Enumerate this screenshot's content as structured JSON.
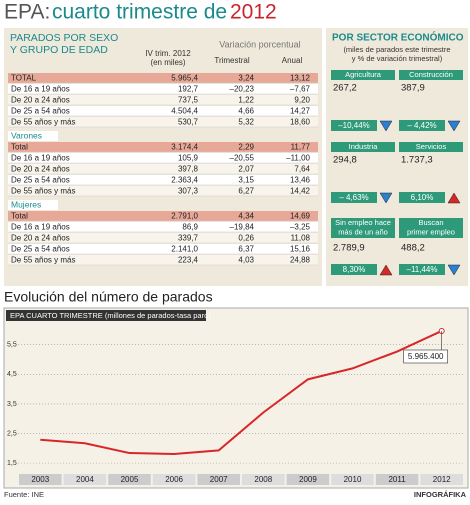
{
  "header": {
    "title_a": "EPA:",
    "title_b": "cuarto trimestre de",
    "title_c": "2012"
  },
  "table": {
    "title_1": "PARADOS POR SEXO",
    "title_2": "Y GRUPO DE EDAD",
    "col_value_1": "IV trim. 2012",
    "col_value_2": "(en miles)",
    "col_var": "Variación porcentual",
    "col_trim": "Trimestral",
    "col_anual": "Anual",
    "groups": [
      {
        "rows": [
          [
            "TOTAL",
            "5.965,4",
            "3,24",
            "13,12"
          ],
          [
            "De 16 a 19 años",
            "192,7",
            "–20,23",
            "–7,67"
          ],
          [
            "De 20 a 24 años",
            "737,5",
            "1,22",
            "9,20"
          ],
          [
            "De 25 a 54 años",
            "4.504,4",
            "4,66",
            "14,27"
          ],
          [
            "De 55 años y más",
            "530,7",
            "5,32",
            "18,60"
          ]
        ]
      },
      {
        "label": "Varones",
        "rows": [
          [
            "Total",
            "3.174,4",
            "2,29",
            "11,77"
          ],
          [
            "De 16 a 19 años",
            "105,9",
            "–20,55",
            "–11,00"
          ],
          [
            "De 20 a 24 años",
            "397,8",
            "2,07",
            "7,64"
          ],
          [
            "De 25 a 54 años",
            "2.363,4",
            "3,15",
            "13,46"
          ],
          [
            "De 55 años y más",
            "307,3",
            "6,27",
            "14,42"
          ]
        ]
      },
      {
        "label": "Mujeres",
        "rows": [
          [
            "Total",
            "2.791,0",
            "4,34",
            "14,69"
          ],
          [
            "De 16 a 19 años",
            "86,9",
            "–19,84",
            "–3,25"
          ],
          [
            "De 20 a 24 años",
            "339,7",
            "0,26",
            "11,08"
          ],
          [
            "De 25 a 54 años",
            "2.141,0",
            "6,37",
            "15,16"
          ],
          [
            "De 55 años y más",
            "223,4",
            "4,03",
            "24,88"
          ]
        ]
      }
    ]
  },
  "sectors": {
    "title": "POR SECTOR ECONÓMICO",
    "subtitle_1": "(miles de parados este trimestre",
    "subtitle_2": "y % de variación trimestral)",
    "items": [
      {
        "label": [
          "Agricultura"
        ],
        "value": "267,2",
        "change": "–10,44%"
      },
      {
        "label": [
          "Construcción"
        ],
        "value": "387,9",
        "change": "– 4,42%"
      },
      {
        "label": [
          "Industria"
        ],
        "value": "294,8",
        "change": "– 4,63%"
      },
      {
        "label": [
          "Servicios"
        ],
        "value": "1.737,3",
        "change": "6,10%"
      },
      {
        "label": [
          "Sin empleo hace",
          "más de un año"
        ],
        "value": "2.789,9",
        "change": "8,30%"
      },
      {
        "label": [
          "Buscan",
          "primer empleo"
        ],
        "value": "488,2",
        "change": "–11,44%"
      }
    ]
  },
  "chart_data": {
    "type": "line",
    "title": "Evolución del número de parados",
    "subtitle": "EPA CUARTO TRIMESTRE (millones de parados-tasa paro)",
    "categories": [
      "2003",
      "2004",
      "2005",
      "2006",
      "2007",
      "2008",
      "2009",
      "2010",
      "2011",
      "2012"
    ],
    "values": [
      2.29,
      2.17,
      1.84,
      1.81,
      1.93,
      3.21,
      4.33,
      4.7,
      5.27,
      5.9654
    ],
    "color": "#d62828",
    "ylim": [
      1.2,
      6.2
    ],
    "yticks": [
      {
        "value": 1.5,
        "label": "1,5"
      },
      {
        "value": 2.5,
        "label": "2,5"
      },
      {
        "value": 3.5,
        "label": "3,5"
      },
      {
        "value": 4.5,
        "label": "4,5"
      },
      {
        "value": 5.5,
        "label": "5,5"
      }
    ],
    "grid": true,
    "annotation": "5.965.400"
  },
  "footer": {
    "source": "Fuente: INE",
    "credit": "INFOGRÁFIKA"
  }
}
